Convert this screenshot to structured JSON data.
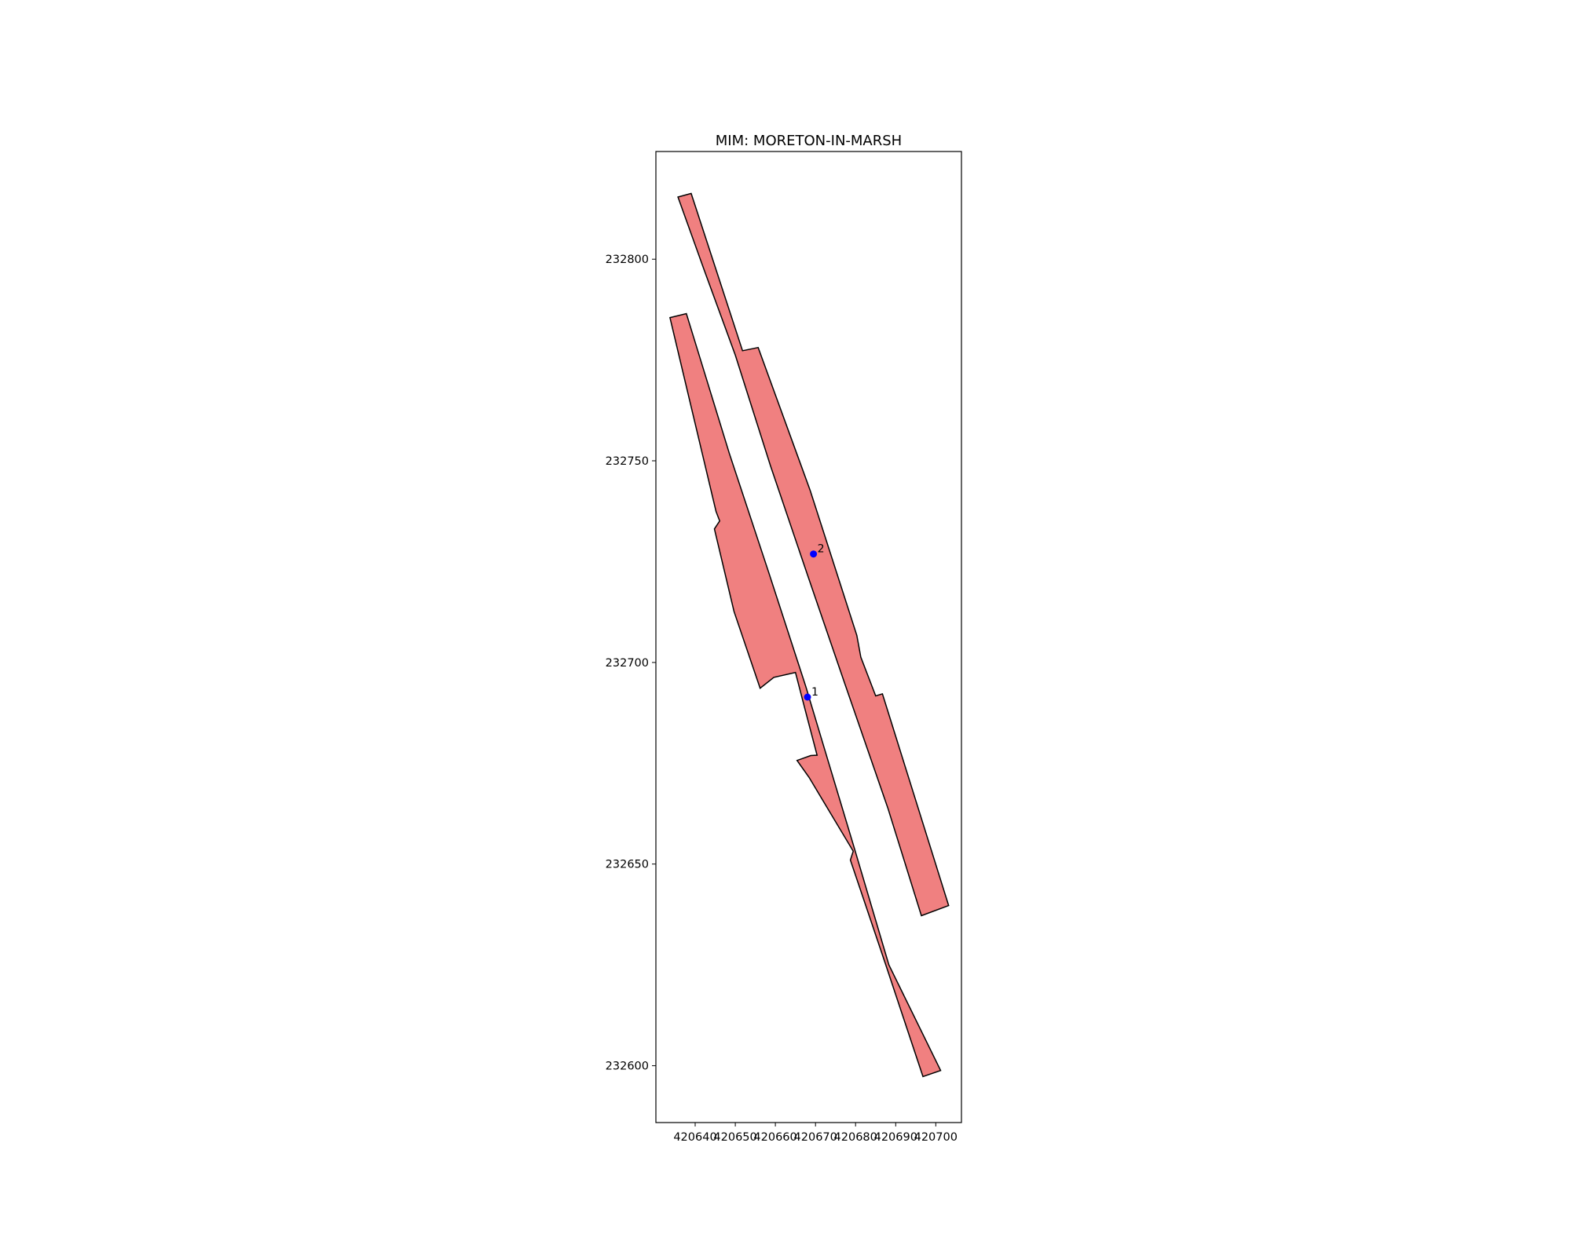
{
  "chart_data": {
    "type": "map",
    "title": "MIM: MORETON-IN-MARSH",
    "xlim": [
      420630.2,
      420706.4
    ],
    "ylim": [
      232585.9,
      232826.7
    ],
    "x_ticks": [
      {
        "value": 420640,
        "label": "420640"
      },
      {
        "value": 420650,
        "label": "420650"
      },
      {
        "value": 420660,
        "label": "420660"
      },
      {
        "value": 420670,
        "label": "420670"
      },
      {
        "value": 420680,
        "label": "420680"
      },
      {
        "value": 420690,
        "label": "420690"
      },
      {
        "value": 420700,
        "label": "420700"
      }
    ],
    "y_ticks": [
      {
        "value": 232600,
        "label": "232600"
      },
      {
        "value": 232650,
        "label": "232650"
      },
      {
        "value": 232700,
        "label": "232700"
      },
      {
        "value": 232750,
        "label": "232750"
      },
      {
        "value": 232800,
        "label": "232800"
      }
    ],
    "polygon_style": {
      "fill": "#f08080",
      "stroke": "#000000"
    },
    "polygons": [
      {
        "name": "platform-polygon-upper",
        "coords": [
          [
            420635.7,
            232815.4
          ],
          [
            420639.0,
            232816.3
          ],
          [
            420651.8,
            232777.3
          ],
          [
            420655.7,
            232778.1
          ],
          [
            420668.7,
            232742.6
          ],
          [
            420680.3,
            232706.7
          ],
          [
            420681.3,
            232701.3
          ],
          [
            420685.0,
            232691.7
          ],
          [
            420686.7,
            232692.2
          ],
          [
            420703.2,
            232639.7
          ],
          [
            420696.4,
            232637.2
          ],
          [
            420688.1,
            232663.7
          ],
          [
            420677.3,
            232694.8
          ],
          [
            420668.0,
            232721.7
          ],
          [
            420658.8,
            232748.7
          ],
          [
            420650.0,
            232776.2
          ],
          [
            420642.2,
            232797.4
          ]
        ]
      },
      {
        "name": "platform-polygon-lower",
        "coords": [
          [
            420633.7,
            232785.5
          ],
          [
            420637.8,
            232786.5
          ],
          [
            420648.5,
            232751.9
          ],
          [
            420658.4,
            232722.1
          ],
          [
            420667.6,
            232694.0
          ],
          [
            420672.3,
            232678.4
          ],
          [
            420679.7,
            232653.9
          ],
          [
            420688.3,
            232625.0
          ],
          [
            420701.2,
            232598.8
          ],
          [
            420696.8,
            232597.3
          ],
          [
            420687.4,
            232625.4
          ],
          [
            420678.7,
            232651.0
          ],
          [
            420679.4,
            232653.2
          ],
          [
            420668.4,
            232671.5
          ],
          [
            420665.4,
            232675.7
          ],
          [
            420668.8,
            232676.9
          ],
          [
            420670.4,
            232677.0
          ],
          [
            420667.2,
            232689.1
          ],
          [
            420665.0,
            232697.5
          ],
          [
            420659.6,
            232696.3
          ],
          [
            420656.2,
            232693.6
          ],
          [
            420649.7,
            232712.6
          ],
          [
            420644.8,
            232733.1
          ],
          [
            420646.1,
            232735.1
          ],
          [
            420645.2,
            232737.4
          ]
        ]
      }
    ],
    "points": [
      {
        "name": "1",
        "label": "1",
        "x": 420668.0,
        "y": 232691.4,
        "color": "#0000ff"
      },
      {
        "name": "2",
        "label": "2",
        "x": 420669.5,
        "y": 232726.9,
        "color": "#0000ff"
      }
    ]
  }
}
